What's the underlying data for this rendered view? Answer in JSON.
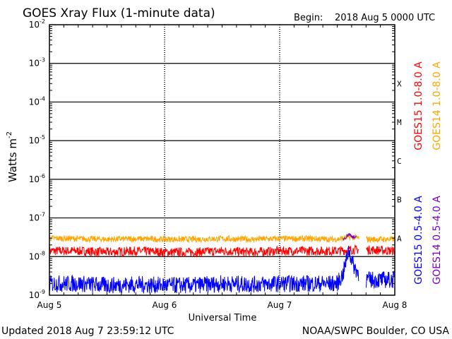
{
  "header": {
    "title": "GOES Xray Flux (1-minute data)",
    "begin_label": "Begin:",
    "begin_value": "2018 Aug 5 0000 UTC"
  },
  "footer": {
    "updated": "Updated 2018 Aug  7 23:59:12 UTC",
    "credit": "NOAA/SWPC Boulder, CO USA"
  },
  "chart_data": {
    "type": "line",
    "title": "GOES Xray Flux (1-minute data)",
    "xlabel": "Universal Time",
    "ylabel": "Watts m",
    "ylabel_superscript": "-2",
    "yscale": "log",
    "ylim": [
      1e-09,
      0.01
    ],
    "xlim_days": [
      0,
      3
    ],
    "x_ticks": [
      {
        "label": "Aug 5",
        "day": 0
      },
      {
        "label": "Aug 6",
        "day": 1
      },
      {
        "label": "Aug 7",
        "day": 2
      },
      {
        "label": "Aug 8",
        "day": 3
      }
    ],
    "y_ticks": [
      {
        "exp": "-9",
        "value": 1e-09
      },
      {
        "exp": "-8",
        "value": 1e-08
      },
      {
        "exp": "-7",
        "value": 1e-07
      },
      {
        "exp": "-6",
        "value": 1e-06
      },
      {
        "exp": "-5",
        "value": 1e-05
      },
      {
        "exp": "-4",
        "value": 0.0001
      },
      {
        "exp": "-3",
        "value": 0.001
      },
      {
        "exp": "-2",
        "value": 0.01
      }
    ],
    "flare_classes": [
      {
        "label": "A",
        "value": 1e-08
      },
      {
        "label": "B",
        "value": 1e-07
      },
      {
        "label": "C",
        "value": 1e-06
      },
      {
        "label": "M",
        "value": 1e-05
      },
      {
        "label": "X",
        "value": 0.0001
      }
    ],
    "grid": true,
    "gap_days": [
      2.69,
      2.75
    ],
    "series": [
      {
        "name": "GOES15 1.0-8.0 A",
        "color": "#ff0000",
        "x": [
          0,
          0.25,
          0.5,
          0.75,
          1.0,
          1.25,
          1.5,
          1.75,
          2.0,
          2.25,
          2.5,
          2.62,
          2.75,
          3.0
        ],
        "values": [
          1.4e-08,
          1.4e-08,
          1.3e-08,
          1.4e-08,
          1.3e-08,
          1.3e-08,
          1.4e-08,
          1.3e-08,
          1.4e-08,
          1.4e-08,
          1.4e-08,
          1.5e-08,
          1.5e-08,
          1.4e-08
        ]
      },
      {
        "name": "GOES14 1.0-8.0 A",
        "color": "#ffa500",
        "x": [
          0,
          0.25,
          0.5,
          0.75,
          1.0,
          1.25,
          1.5,
          1.75,
          2.0,
          2.25,
          2.5,
          2.62,
          2.75,
          3.0
        ],
        "values": [
          3e-08,
          2.9e-08,
          2.8e-08,
          2.9e-08,
          2.8e-08,
          2.8e-08,
          2.9e-08,
          2.8e-08,
          2.9e-08,
          2.9e-08,
          2.8e-08,
          3.2e-08,
          2.8e-08,
          2.8e-08
        ]
      },
      {
        "name": "GOES15 0.5-4.0 A",
        "color": "#0000ff",
        "x": [
          0,
          0.25,
          0.5,
          0.75,
          1.0,
          1.25,
          1.5,
          1.75,
          2.0,
          2.25,
          2.5,
          2.55,
          2.6,
          2.64,
          2.69,
          2.75,
          3.0
        ],
        "values": [
          2e-09,
          2e-09,
          1.8e-09,
          1.9e-09,
          1.8e-09,
          1.8e-09,
          2e-09,
          1.9e-09,
          2e-09,
          2e-09,
          2e-09,
          3.5e-09,
          1.5e-08,
          6e-09,
          3.5e-09,
          2.5e-09,
          2.5e-09
        ]
      },
      {
        "name": "GOES14 0.5-4.0 A",
        "color": "#7a00c8",
        "x": [
          2.55,
          2.6,
          2.64,
          2.67
        ],
        "values": [
          2.8e-08,
          3.8e-08,
          3.2e-08,
          3e-08
        ]
      }
    ]
  }
}
